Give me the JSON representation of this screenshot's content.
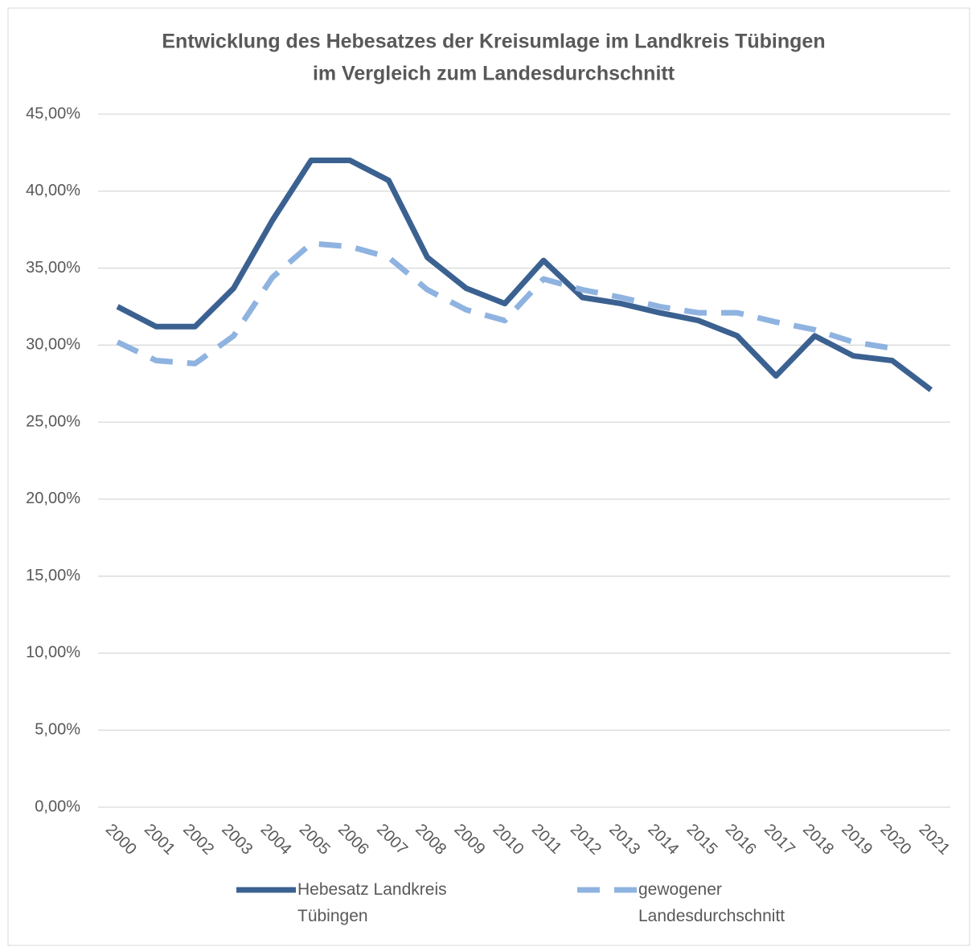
{
  "chart_data": {
    "type": "line",
    "title": [
      "Entwicklung des Hebesatzes der Kreisumlage im Landkreis Tübingen",
      "im Vergleich zum Landesdurchschnitt"
    ],
    "categories": [
      "2000",
      "2001",
      "2002",
      "2003",
      "2004",
      "2005",
      "2006",
      "2007",
      "2008",
      "2009",
      "2010",
      "2011",
      "2012",
      "2013",
      "2014",
      "2015",
      "2016",
      "2017",
      "2018",
      "2019",
      "2020",
      "2021"
    ],
    "series": [
      {
        "name": "Hebesatz Landkreis Tübingen",
        "color": "#3b6191",
        "dashed": false,
        "values": [
          32.5,
          31.2,
          31.2,
          33.7,
          38.1,
          42.0,
          42.0,
          40.7,
          35.7,
          33.7,
          32.7,
          35.5,
          33.1,
          32.7,
          32.1,
          31.6,
          30.6,
          28.0,
          30.6,
          29.3,
          29.0,
          27.1
        ]
      },
      {
        "name": "gewogener Landesdurchschnitt",
        "color": "#8fb3e0",
        "dashed": true,
        "values": [
          30.2,
          29.0,
          28.8,
          30.6,
          34.4,
          36.6,
          36.4,
          35.7,
          33.6,
          32.3,
          31.6,
          34.3,
          33.6,
          33.1,
          32.5,
          32.1,
          32.1,
          31.5,
          31.0,
          30.2,
          29.8,
          null
        ]
      }
    ],
    "ylim": [
      0,
      45
    ],
    "yticks": [
      {
        "value": 0,
        "label": "0,00%"
      },
      {
        "value": 5,
        "label": "5,00%"
      },
      {
        "value": 10,
        "label": "10,00%"
      },
      {
        "value": 15,
        "label": "15,00%"
      },
      {
        "value": 20,
        "label": "20,00%"
      },
      {
        "value": 25,
        "label": "25,00%"
      },
      {
        "value": 30,
        "label": "30,00%"
      },
      {
        "value": 35,
        "label": "35,00%"
      },
      {
        "value": 40,
        "label": "40,00%"
      },
      {
        "value": 45,
        "label": "45,00%"
      }
    ],
    "grid": true,
    "legend": "bottom"
  }
}
